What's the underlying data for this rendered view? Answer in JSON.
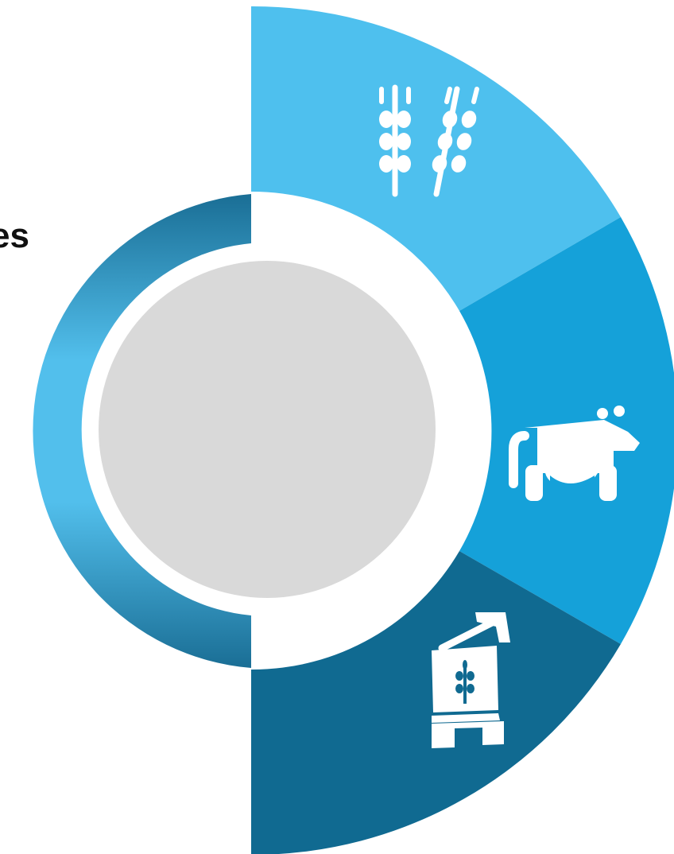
{
  "colors": {
    "segment_top": "#4EC0EE",
    "segment_middle": "#15A1D9",
    "segment_bottom": "#106A91",
    "inner_ring_light": "#52BFEC",
    "inner_ring_dark": "#1A6E95",
    "center_disc": "#D9D9D9",
    "icon_fill": "#FFFFFF",
    "text": "#111111"
  },
  "segments": [
    {
      "id": "top",
      "icon": "wheat-icon"
    },
    {
      "id": "middle",
      "icon": "cow-icon"
    },
    {
      "id": "bottom",
      "icon": "grain-silo-growth-icon"
    }
  ],
  "side_label": {
    "text": "es"
  }
}
